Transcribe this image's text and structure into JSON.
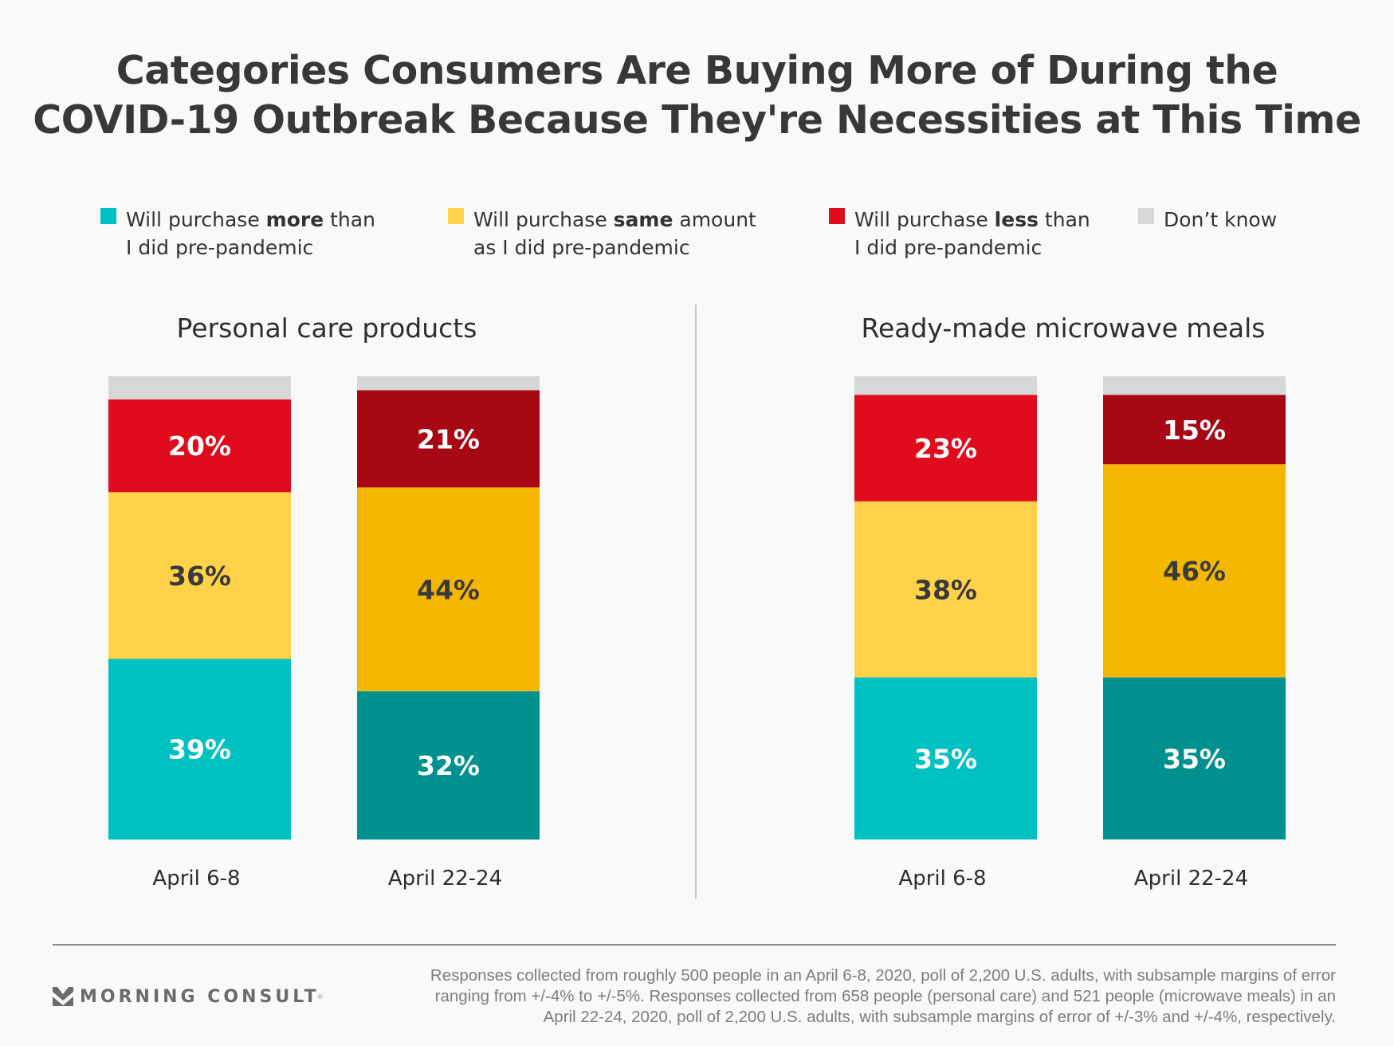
{
  "title": {
    "line1": "Categories Consumers Are Buying More of During the",
    "line2": "COVID-19 Outbreak Because They're Necessities at This Time"
  },
  "legend": [
    {
      "key": "more",
      "pre": "Will purchase ",
      "bold": "more",
      "post": " than",
      "line2": "I did pre-pandemic",
      "color": "#00c1c1"
    },
    {
      "key": "same",
      "pre": "Will purchase ",
      "bold": "same",
      "post": " amount",
      "line2": "as I did pre-pandemic",
      "color": "#ffd24a"
    },
    {
      "key": "less",
      "pre": "Will purchase ",
      "bold": "less",
      "post": " than",
      "line2": "I did pre-pandemic",
      "color": "#e00b1c"
    },
    {
      "key": "dont_know",
      "pre": "Don’t know",
      "bold": "",
      "post": "",
      "line2": "",
      "color": "#d7d7d7"
    }
  ],
  "chart_data": [
    {
      "type": "bar",
      "stacked": true,
      "title": "Personal care products",
      "categories": [
        "April 6-8",
        "April 22-24"
      ],
      "series": [
        {
          "name": "Will purchase more than I did pre-pandemic",
          "values": [
            39,
            32
          ],
          "colors": [
            "#00c1c1",
            "#00918e"
          ],
          "label_color": "#ffffff"
        },
        {
          "name": "Will purchase same amount as I did pre-pandemic",
          "values": [
            36,
            44
          ],
          "colors": [
            "#ffd24a",
            "#f5b600"
          ],
          "label_color": "#3a3a3a"
        },
        {
          "name": "Will purchase less than I did pre-pandemic",
          "values": [
            20,
            21
          ],
          "colors": [
            "#e00b1c",
            "#a80814"
          ],
          "label_color": "#ffffff"
        },
        {
          "name": "Don't know",
          "values": [
            5,
            3
          ],
          "colors": [
            "#d7d7d7",
            "#d7d7d7"
          ],
          "label_color": null
        }
      ],
      "value_labels": [
        [
          "39%",
          "36%",
          "20%",
          null
        ],
        [
          "32%",
          "44%",
          "21%",
          null
        ]
      ],
      "ylim": [
        0,
        100
      ],
      "xlabel": "",
      "ylabel": "",
      "grid": false
    },
    {
      "type": "bar",
      "stacked": true,
      "title": "Ready-made microwave meals",
      "categories": [
        "April 6-8",
        "April 22-24"
      ],
      "series": [
        {
          "name": "Will purchase more than I did pre-pandemic",
          "values": [
            35,
            35
          ],
          "colors": [
            "#00c1c1",
            "#00918e"
          ],
          "label_color": "#ffffff"
        },
        {
          "name": "Will purchase same amount as I did pre-pandemic",
          "values": [
            38,
            46
          ],
          "colors": [
            "#ffd24a",
            "#f5b600"
          ],
          "label_color": "#3a3a3a"
        },
        {
          "name": "Will purchase less than I did pre-pandemic",
          "values": [
            23,
            15
          ],
          "colors": [
            "#e00b1c",
            "#a80814"
          ],
          "label_color": "#ffffff"
        },
        {
          "name": "Don't know",
          "values": [
            4,
            4
          ],
          "colors": [
            "#d7d7d7",
            "#d7d7d7"
          ],
          "label_color": null
        }
      ],
      "value_labels": [
        [
          "35%",
          "38%",
          "23%",
          null
        ],
        [
          "35%",
          "46%",
          "15%",
          null
        ]
      ],
      "ylim": [
        0,
        100
      ],
      "xlabel": "",
      "ylabel": "",
      "grid": false
    }
  ],
  "footer": {
    "brand": "MORNING CONSULT",
    "brand_mark": "®",
    "note_lines": [
      "Responses collected from roughly 500 people in an April 6-8, 2020, poll of 2,200 U.S. adults, with subsample margins of error",
      "ranging from +/-4% to +/-5%. Responses collected from 658 people (personal care) and 521 people (microwave meals) in an",
      "April 22-24, 2020, poll of 2,200 U.S. adults, with subsample margins of error of +/-3% and +/-4%, respectively."
    ]
  }
}
